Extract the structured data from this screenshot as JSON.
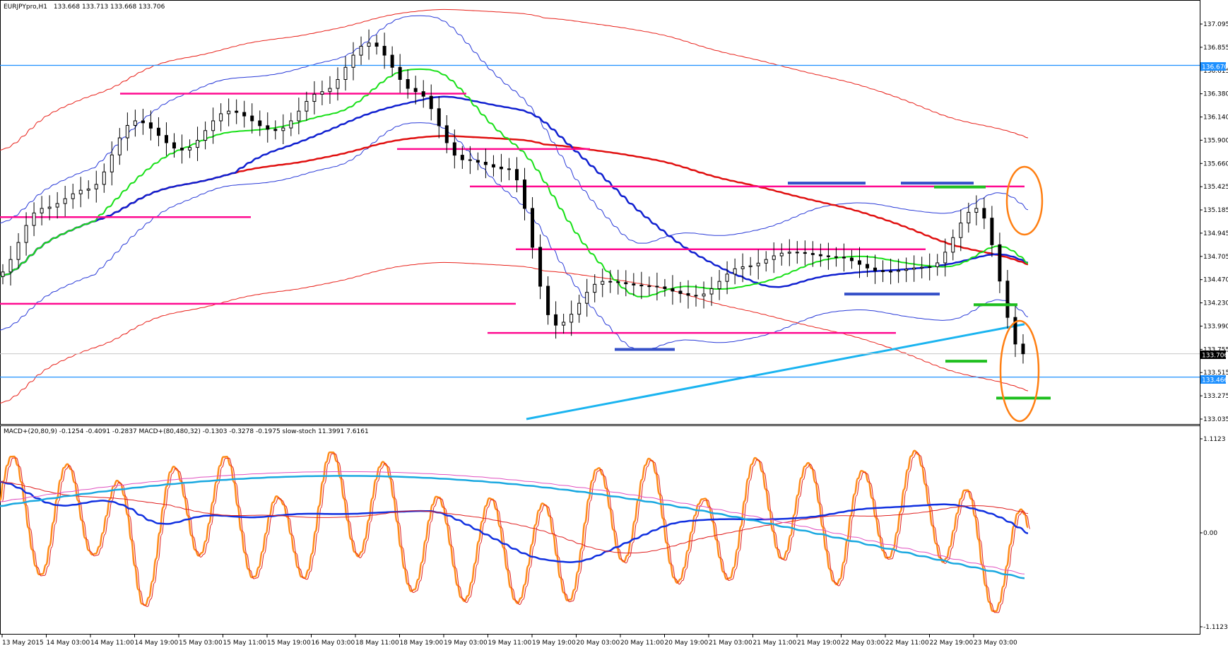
{
  "header": {
    "symbol": "EURJPYpro,H1",
    "ohlc": "133.668 133.713 133.668 133.706"
  },
  "indicator_header": "MACD+(20,80,9) -0.1254 -0.4091 -0.2837  MACD+(80,480,32) -0.1303 -0.3278 -0.1975  slow-stoch 11.3991 7.6161",
  "price_axis_labels": [
    "137.095",
    "136.855",
    "136.615",
    "136.380",
    "136.140",
    "135.900",
    "135.660",
    "135.425",
    "135.185",
    "134.945",
    "134.705",
    "134.470",
    "134.230",
    "133.990",
    "133.755",
    "133.515",
    "133.275",
    "133.035"
  ],
  "price_tags": {
    "upper_line": "136.670",
    "current": "133.706",
    "lower_line": "133.466"
  },
  "indicator_axis_labels": [
    "1.1123",
    "0.00",
    "-1.1123"
  ],
  "time_labels": [
    "13 May 2015",
    "14 May 03:00",
    "14 May 11:00",
    "14 May 19:00",
    "15 May 03:00",
    "15 May 11:00",
    "15 May 19:00",
    "16 May 03:00",
    "18 May 11:00",
    "18 May 19:00",
    "19 May 03:00",
    "19 May 11:00",
    "19 May 19:00",
    "20 May 03:00",
    "20 May 11:00",
    "20 May 19:00",
    "21 May 03:00",
    "21 May 11:00",
    "21 May 19:00",
    "22 May 03:00",
    "22 May 11:00",
    "22 May 19:00",
    "23 May 03:00"
  ],
  "colors": {
    "background": "#ffffff",
    "candles": "#000000",
    "bollinger_blue": "#2a3bd8",
    "bollinger_red": "#e8221b",
    "ema_fast_green": "#18e018",
    "ema_mid_blue": "#1020d0",
    "ema_slow_red": "#e01010",
    "trendline_cyan": "#1ab4f0",
    "level_line_blue": "#1e90ff",
    "sr_magenta": "#ff0a90",
    "support_dark_blue": "#3550c8",
    "target_green": "#1fbf1f",
    "ellipse_orange": "#ff7f12",
    "stoch_orange": "#ff8c1a",
    "macd_fast_blue": "#1030e0",
    "macd_signal_red": "#e02020",
    "macd_slow_cyan": "#1aa8e0",
    "macd_slow_pink": "#e050c0"
  },
  "chart_data": [
    {
      "type": "line",
      "title": "EURJPYpro,H1",
      "x": [
        "13 May 2015",
        "14 May 03:00",
        "14 May 11:00",
        "14 May 19:00",
        "15 May 03:00",
        "15 May 11:00",
        "15 May 19:00",
        "16 May 03:00",
        "18 May 11:00",
        "18 May 19:00",
        "19 May 03:00",
        "19 May 11:00",
        "19 May 19:00",
        "20 May 03:00",
        "20 May 11:00",
        "20 May 19:00",
        "21 May 03:00",
        "21 May 11:00",
        "21 May 19:00",
        "22 May 03:00",
        "22 May 11:00",
        "22 May 19:00",
        "23 May 03:00"
      ],
      "ylim": [
        133.035,
        137.095
      ],
      "series": [
        {
          "values": [
            134.5,
            135.2,
            135.4,
            136.1,
            135.8,
            136.2,
            136.0,
            136.4,
            136.9,
            136.4,
            135.7,
            135.6,
            134.0,
            134.45,
            134.4,
            134.3,
            134.6,
            134.75,
            134.7,
            134.55,
            134.6,
            135.2,
            133.706
          ]
        }
      ],
      "horizontal_levels": [
        136.67,
        136.38,
        135.81,
        135.425,
        135.11,
        134.78,
        134.22,
        133.92,
        133.466
      ],
      "current_price": 133.706
    },
    {
      "type": "line",
      "title": "",
      "x": [
        "13 May 2015",
        "14 May 03:00",
        "14 May 11:00",
        "14 May 19:00",
        "15 May 03:00",
        "15 May 11:00",
        "15 May 19:00",
        "16 May 03:00",
        "18 May 11:00",
        "18 May 19:00",
        "19 May 03:00",
        "19 May 11:00",
        "19 May 19:00",
        "20 May 03:00",
        "20 May 11:00",
        "20 May 19:00",
        "21 May 03:00",
        "21 May 11:00",
        "21 May 19:00",
        "22 May 03:00",
        "22 May 11:00",
        "22 May 19:00",
        "23 May 03:00"
      ],
      "ylim": [
        -1.1123,
        1.1123
      ],
      "series": [
        {
          "values": [
            1.1,
            0.2,
            1.05,
            -0.9,
            1.05,
            0.8,
            -0.6,
            1.0,
            0.95,
            -0.5,
            -0.55,
            -0.6,
            -0.85,
            0.8,
            0.75,
            -0.65,
            0.75,
            0.9,
            -0.1,
            0.9,
            1.1,
            -0.9,
            -0.98
          ]
        }
      ]
    }
  ]
}
